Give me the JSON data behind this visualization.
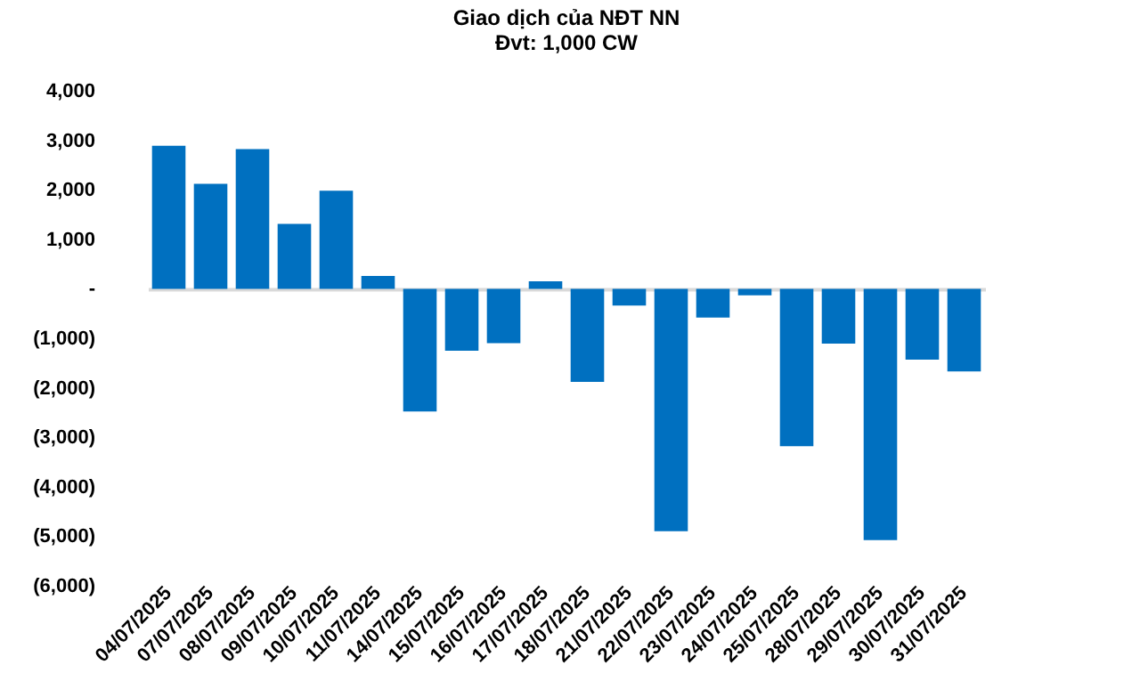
{
  "chart_data": {
    "type": "bar",
    "title": "Giao dịch của NĐT NN",
    "subtitle": "Đvt: 1,000 CW",
    "categories": [
      "04/07/2025",
      "07/07/2025",
      "08/07/2025",
      "09/07/2025",
      "10/07/2025",
      "11/07/2025",
      "14/07/2025",
      "15/07/2025",
      "16/07/2025",
      "17/07/2025",
      "18/07/2025",
      "21/07/2025",
      "22/07/2025",
      "23/07/2025",
      "24/07/2025",
      "25/07/2025",
      "28/07/2025",
      "29/07/2025",
      "30/07/2025",
      "31/07/2025"
    ],
    "values": [
      2890,
      2120,
      2820,
      1310,
      1980,
      260,
      -2480,
      -1250,
      -1100,
      150,
      -1880,
      -340,
      -4900,
      -580,
      -130,
      -3180,
      -1110,
      -5080,
      -1430,
      -1670
    ],
    "color": "#0070c0",
    "yticks": [
      {
        "value": 4000,
        "label": "4,000"
      },
      {
        "value": 3000,
        "label": "3,000"
      },
      {
        "value": 2000,
        "label": "2,000"
      },
      {
        "value": 1000,
        "label": "1,000"
      },
      {
        "value": 0,
        "label": "-"
      },
      {
        "value": -1000,
        "label": "(1,000)"
      },
      {
        "value": -2000,
        "label": "(2,000)"
      },
      {
        "value": -3000,
        "label": "(3,000)"
      },
      {
        "value": -4000,
        "label": "(4,000)"
      },
      {
        "value": -5000,
        "label": "(5,000)"
      },
      {
        "value": -6000,
        "label": "(6,000)"
      }
    ],
    "ylim": [
      -6000,
      4000
    ]
  }
}
